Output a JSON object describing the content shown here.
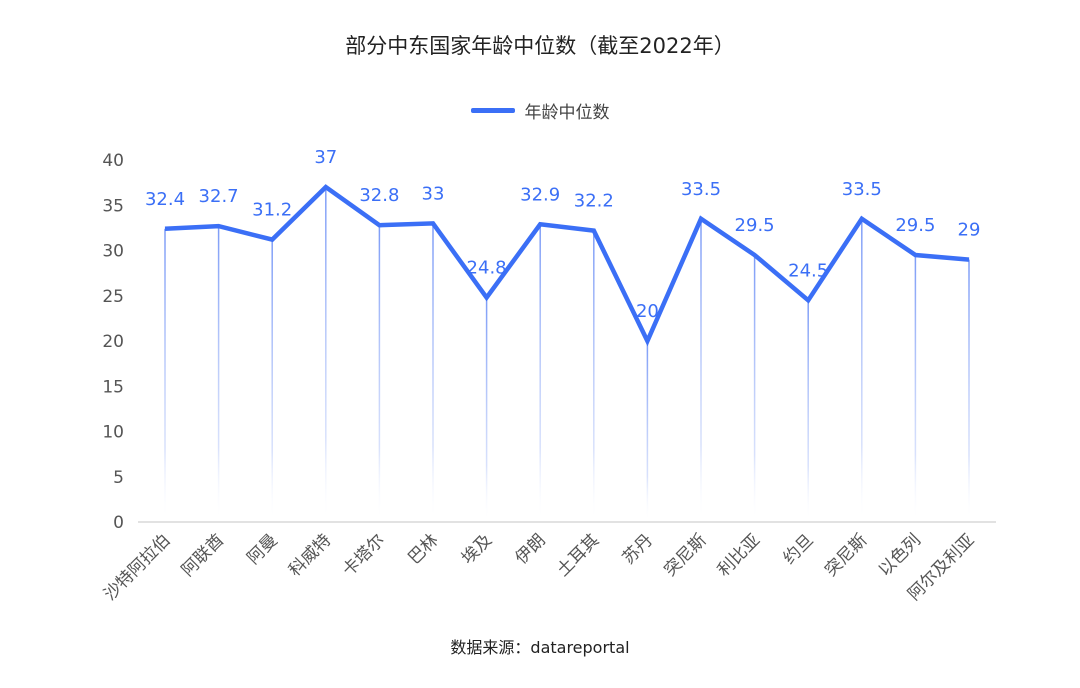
{
  "title": "部分中东国家年龄中位数（截至2022年）",
  "legend_label": "年龄中位数",
  "source": "数据来源：datareportal",
  "colors": {
    "line": "#3b6ff6",
    "axis_text": "#555555",
    "drop_line": "#7d9cf7"
  },
  "chart_data": {
    "type": "line",
    "title": "部分中东国家年龄中位数（截至2022年）",
    "xlabel": "",
    "ylabel": "",
    "ylim": [
      0,
      40
    ],
    "y_ticks": [
      0,
      5,
      10,
      15,
      20,
      25,
      30,
      35,
      40
    ],
    "grid": false,
    "legend_position": "top",
    "categories": [
      "沙特阿拉伯",
      "阿联酋",
      "阿曼",
      "科威特",
      "卡塔尔",
      "巴林",
      "埃及",
      "伊朗",
      "土耳其",
      "苏丹",
      "突尼斯",
      "利比亚",
      "约旦",
      "突尼斯",
      "以色列",
      "阿尔及利亚"
    ],
    "series": [
      {
        "name": "年龄中位数",
        "values": [
          32.4,
          32.7,
          31.2,
          37,
          32.8,
          33,
          24.8,
          32.9,
          32.2,
          20,
          33.5,
          29.5,
          24.5,
          33.5,
          29.5,
          29
        ]
      }
    ]
  }
}
